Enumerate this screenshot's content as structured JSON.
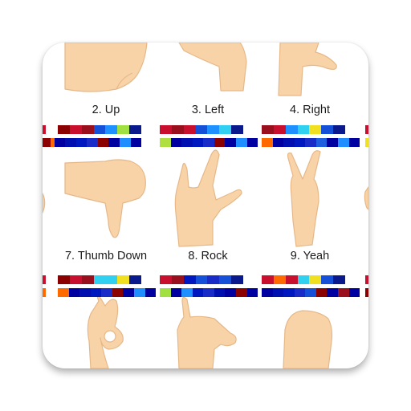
{
  "app_icon": {
    "captions": [
      "2. Up",
      "3. Left",
      "4. Right",
      "7. Thumb Down",
      "8. Rock",
      "9. Yeah"
    ],
    "hand_icons": [
      "hand-up-icon",
      "hand-left-icon",
      "hand-right-icon",
      "hand-partial-icon",
      "thumb-down-icon",
      "rock-hand-icon",
      "peace-sign-icon",
      "hand-partial-icon",
      "ok-hand-icon",
      "call-me-hand-icon",
      "fist-icon"
    ],
    "colors": {
      "skin": "#f9d3a8",
      "skin_outline": "#e6b888",
      "card_background": "#ffffff",
      "caption_text": "#1a1a1a"
    },
    "color_bars": [
      {
        "row": "top",
        "column": 1,
        "cells": [
          "#8b0000",
          "#c8102e",
          "#9a0f1e",
          "#1450d8",
          "#1e90ff",
          "#a0e040",
          "#0a1a8c"
        ]
      },
      {
        "row": "bottom",
        "column": 1,
        "cells": [
          "#ff6a00",
          "#0000a0",
          "#0010b0",
          "#0018c0",
          "#1a2cc8",
          "#8b0000",
          "#0000a0",
          "#1f8fff",
          "#0000a0"
        ]
      },
      {
        "row": "top",
        "column": 2,
        "cells": [
          "#c8102e",
          "#9a0f1e",
          "#c8102e",
          "#1450d8",
          "#1e90ff",
          "#30d0f0",
          "#0a1a8c"
        ]
      },
      {
        "row": "bottom",
        "column": 2,
        "cells": [
          "#b0e040",
          "#0000a0",
          "#0010b0",
          "#0018c0",
          "#1a2cc8",
          "#8b0000",
          "#0000a0",
          "#1f8fff",
          "#0000a0"
        ]
      },
      {
        "row": "top",
        "column": 3,
        "cells": [
          "#9a0f1e",
          "#c8102e",
          "#1e90ff",
          "#30d0f0",
          "#f0e020",
          "#1450d8",
          "#0a1a8c"
        ]
      },
      {
        "row": "bottom",
        "column": 3,
        "cells": [
          "#ff6a00",
          "#0000a0",
          "#0010b0",
          "#0018c0",
          "#1a2cc8",
          "#1e60e0",
          "#0000a0",
          "#1f8fff",
          "#0000a0"
        ]
      },
      {
        "row": "top",
        "column": 1,
        "cells": [
          "#8b0000",
          "#c8102e",
          "#9a0f1e",
          "#30d0f0",
          "#30d0f0",
          "#f0e020",
          "#0a1a8c"
        ]
      },
      {
        "row": "bottom",
        "column": 1,
        "cells": [
          "#ff6a00",
          "#0000a0",
          "#0010b0",
          "#0018c0",
          "#1a2cc8",
          "#8b0000",
          "#0000a0",
          "#1f8fff",
          "#0000a0"
        ]
      },
      {
        "row": "top",
        "column": 2,
        "cells": [
          "#c8102e",
          "#9a0f1e",
          "#0018c0",
          "#1450d8",
          "#1a2cc8",
          "#1450d8",
          "#0a1a8c"
        ]
      },
      {
        "row": "bottom",
        "column": 2,
        "cells": [
          "#a0e040",
          "#0000a0",
          "#1e90ff",
          "#0018c0",
          "#1a2cc8",
          "#0010b0",
          "#0000a0",
          "#8b0000",
          "#0000a0"
        ]
      },
      {
        "row": "top",
        "column": 3,
        "cells": [
          "#c8102e",
          "#ff6a00",
          "#c8102e",
          "#30d0f0",
          "#f0e020",
          "#1450d8",
          "#0a1a8c"
        ]
      },
      {
        "row": "bottom",
        "column": 3,
        "cells": [
          "#0000a0",
          "#0010b0",
          "#0018c0",
          "#1a2cc8",
          "#1450d8",
          "#8b0000",
          "#0000a0",
          "#9a0f1e",
          "#0000a0"
        ]
      },
      {
        "row": "top",
        "column": 0,
        "cells": [
          "#c8102e"
        ]
      },
      {
        "row": "bottom",
        "column": 0,
        "cells": [
          "#8b0000"
        ]
      },
      {
        "row": "top",
        "column": 4,
        "cells": [
          "#c8102e"
        ]
      },
      {
        "row": "bottom",
        "column": 4,
        "cells": [
          "#f0e020"
        ]
      },
      {
        "row": "top",
        "column": 0,
        "cells": [
          "#c8102e"
        ]
      },
      {
        "row": "bottom",
        "column": 0,
        "cells": [
          "#ff6a00"
        ]
      },
      {
        "row": "top",
        "column": 4,
        "cells": [
          "#c8102e"
        ]
      },
      {
        "row": "bottom",
        "column": 4,
        "cells": [
          "#8b0000"
        ]
      }
    ]
  }
}
